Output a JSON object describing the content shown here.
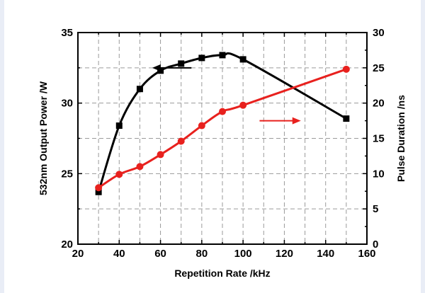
{
  "chart_data": {
    "type": "line",
    "xlabel": "Repetition Rate /kHz",
    "ylabel": "532nm Output Power /W",
    "y2label": "Pulse Duration /ns",
    "xlim": [
      20,
      160
    ],
    "ylim": [
      20,
      35
    ],
    "y2lim": [
      0,
      30
    ],
    "xticks": [
      20,
      40,
      60,
      80,
      100,
      120,
      140,
      160
    ],
    "yticks": [
      20,
      25,
      30,
      35
    ],
    "y2ticks": [
      0,
      5,
      10,
      15,
      20,
      25,
      30
    ],
    "grid": true,
    "colors": {
      "power": "#000000",
      "duration": "#e8211e"
    },
    "series": [
      {
        "axis": "left",
        "marker": "square",
        "x": [
          30,
          40,
          50,
          60,
          70,
          80,
          90,
          100,
          150
        ],
        "values": [
          23.7,
          28.4,
          31.0,
          32.3,
          32.8,
          33.2,
          33.4,
          33.1,
          28.9
        ]
      },
      {
        "axis": "right",
        "marker": "circle",
        "x": [
          30,
          40,
          50,
          60,
          70,
          80,
          90,
          100,
          150
        ],
        "values": [
          8.0,
          9.9,
          11.0,
          12.7,
          14.6,
          16.8,
          18.8,
          19.7,
          24.8
        ]
      }
    ],
    "annotations": [
      {
        "type": "arrow",
        "direction": "left",
        "points_to": "left",
        "series": 0,
        "from": [
          75,
          32.5
        ],
        "to": [
          56,
          32.5
        ]
      },
      {
        "type": "arrow",
        "direction": "right",
        "points_to": "right",
        "series": 1,
        "from": [
          108,
          17.5
        ],
        "to": [
          128,
          17.5
        ]
      }
    ]
  }
}
